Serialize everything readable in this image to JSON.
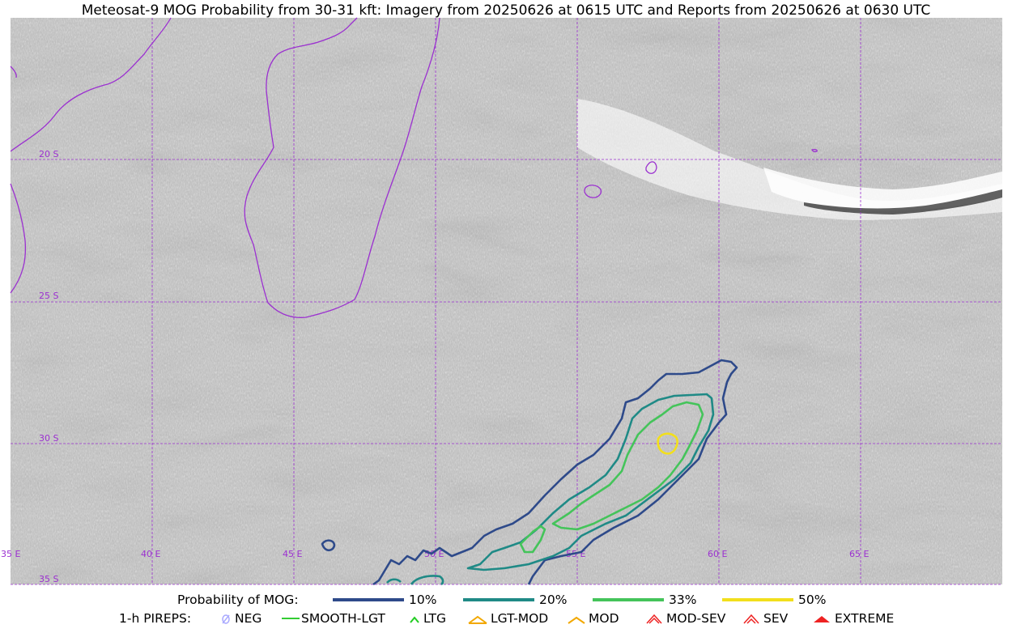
{
  "title": "Meteosat-9 MOG Probability from 30-31 kft: Imagery from 20250626 at 0615 UTC and Reports from 20250626 at 0630 UTC",
  "map": {
    "lat_labels": [
      "20 S",
      "25 S",
      "30 S",
      "35 S"
    ],
    "lon_labels": [
      "35 E",
      "40 E",
      "45 E",
      "50 E",
      "55 E",
      "60 E",
      "65 E"
    ],
    "coastline_color": "#9b30d0",
    "grid_color": "#9b30d0"
  },
  "legend": {
    "probability_label": "Probability of MOG:",
    "levels": [
      {
        "label": "10%",
        "color": "#2e4a8a"
      },
      {
        "label": "20%",
        "color": "#1f8a86"
      },
      {
        "label": "33%",
        "color": "#44c45a"
      },
      {
        "label": "50%",
        "color": "#f2df1c"
      }
    ],
    "pireps_label": "1-h PIREPS:",
    "pireps": [
      {
        "label": "NEG",
        "icon": "neg-icon",
        "color": "#a9a9ff"
      },
      {
        "label": "SMOOTH-LGT",
        "icon": "smooth-lgt-line-icon",
        "color": "#33cc33"
      },
      {
        "label": "LTG",
        "icon": "ltg-caret-icon",
        "color": "#22cc22"
      },
      {
        "label": "LGT-MOD",
        "icon": "lgt-mod-caret-icon",
        "color": "#f2a800"
      },
      {
        "label": "MOD",
        "icon": "mod-caret-icon",
        "color": "#f2a800"
      },
      {
        "label": "MOD-SEV",
        "icon": "mod-sev-caret-icon",
        "color": "#ee2222"
      },
      {
        "label": "SEV",
        "icon": "sev-caret-icon",
        "color": "#ee2222"
      },
      {
        "label": "EXTREME",
        "icon": "extreme-caret-icon",
        "color": "#ee2222"
      }
    ]
  }
}
